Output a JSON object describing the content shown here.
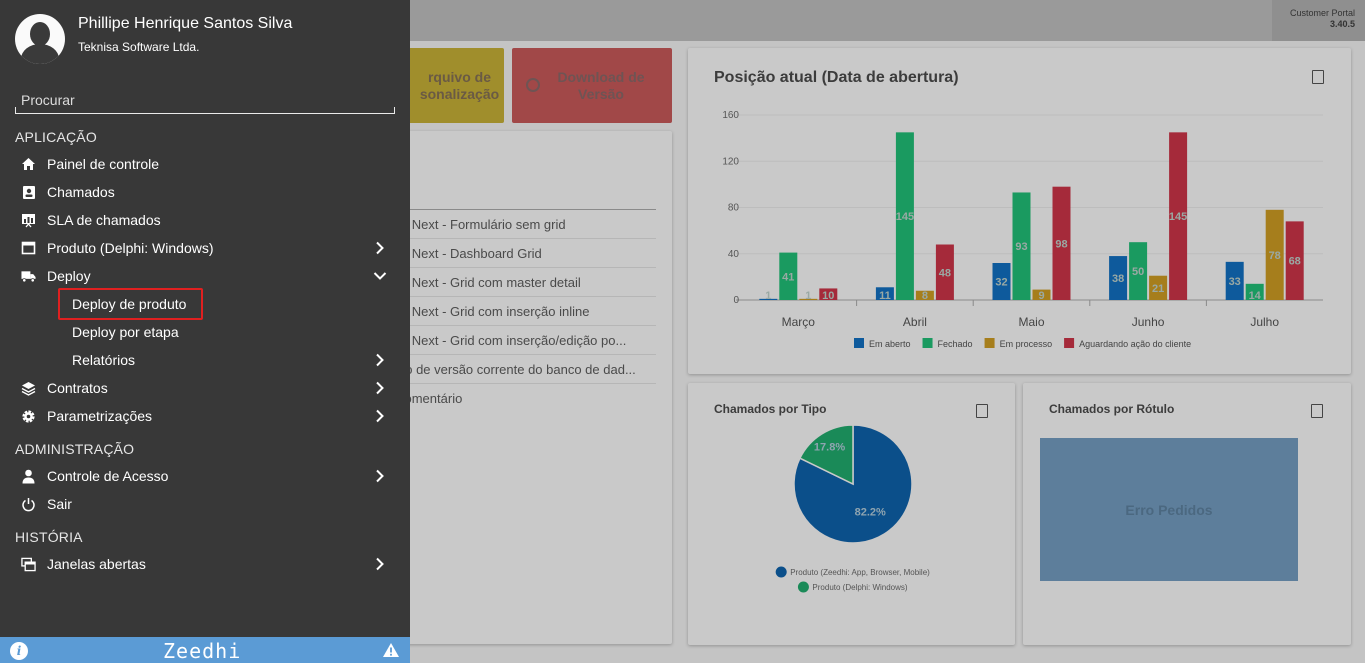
{
  "header": {
    "portal_name": "Customer Portal",
    "version": "3.40.5"
  },
  "tiles": {
    "arquivo_label": "rquivo de\nsonalização",
    "download_label": "Download de\nVersão"
  },
  "list": {
    "rows": [
      "hi Next - Formulário sem grid",
      "hi Next - Dashboard Grid",
      "hi Next - Grid com master detail",
      "hi Next - Grid com inserção inline",
      "hi Next - Grid com inserção/edição po...",
      "ão de versão corrente do banco de dad...",
      "comentário"
    ]
  },
  "charts": {
    "bar_title": "Posição atual (Data de abertura)",
    "pie_title": "Chamados por Tipo",
    "label_title": "Chamados por Rótulo",
    "label_error": "Erro Pedidos"
  },
  "chart_data": [
    {
      "type": "bar",
      "title": "Posição atual (Data de abertura)",
      "categories": [
        "Março",
        "Abril",
        "Maio",
        "Junho",
        "Julho"
      ],
      "yticks": [
        0,
        40,
        80,
        120,
        160
      ],
      "ylim": [
        0,
        160
      ],
      "series": [
        {
          "name": "Em aberto",
          "color": "#0e5a9c",
          "values": [
            1,
            11,
            32,
            38,
            33
          ]
        },
        {
          "name": "Fechado",
          "color": "#1a9a60",
          "values": [
            41,
            145,
            93,
            50,
            14
          ]
        },
        {
          "name": "Em processo",
          "color": "#a67e1c",
          "values": [
            1,
            8,
            9,
            21,
            78
          ]
        },
        {
          "name": "Aguardando ação do cliente",
          "color": "#a52a3a",
          "values": [
            10,
            48,
            98,
            145,
            68
          ]
        }
      ],
      "legend_position": "bottom"
    },
    {
      "type": "pie",
      "title": "Chamados por Tipo",
      "slices": [
        {
          "label": "Produto (Zeedhi: App, Browser, Mobile)",
          "value": 82.2,
          "color": "#0b4f8a",
          "display": "82.2%"
        },
        {
          "label": "Produto (Delphi: Windows)",
          "value": 17.8,
          "color": "#1a8a58",
          "display": "17.8%"
        }
      ]
    }
  ],
  "drawer": {
    "user_name": "Phillipe Henrique Santos Silva",
    "company": "Teknisa Software Ltda.",
    "search_placeholder": "Procurar",
    "sections": {
      "aplicacao": "APLICAÇÃO",
      "administracao": "ADMINISTRAÇÃO",
      "historia": "HISTÓRIA"
    },
    "items": {
      "painel": "Painel de controle",
      "chamados": "Chamados",
      "sla": "SLA de chamados",
      "produto": "Produto (Delphi: Windows)",
      "deploy": "Deploy",
      "deploy_produto": "Deploy de produto",
      "deploy_etapa": "Deploy por etapa",
      "relatorios": "Relatórios",
      "contratos": "Contratos",
      "parametrizacoes": "Parametrizações",
      "controle_acesso": "Controle de Acesso",
      "sair": "Sair",
      "janelas": "Janelas abertas"
    },
    "footer_logo": "Zeedhi"
  }
}
